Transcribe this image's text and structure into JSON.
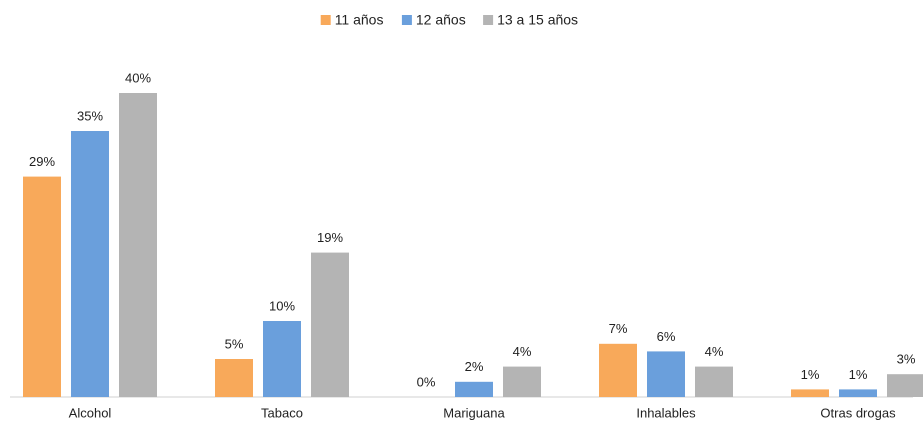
{
  "chart_data": {
    "type": "bar",
    "categories": [
      "Alcohol",
      "Tabaco",
      "Mariguana",
      "Inhalables",
      "Otras drogas"
    ],
    "series": [
      {
        "name": "11 años",
        "color": "#f8a95a",
        "values": [
          29,
          5,
          0,
          7,
          1
        ],
        "value_labels": [
          "29%",
          "5%",
          "0%",
          "7%",
          "1%"
        ]
      },
      {
        "name": "12 años",
        "color": "#6a9fdc",
        "values": [
          35,
          10,
          2,
          6,
          1
        ],
        "value_labels": [
          "35%",
          "10%",
          "2%",
          "6%",
          "1%"
        ]
      },
      {
        "name": "13 a 15 años",
        "color": "#b4b4b4",
        "values": [
          40,
          19,
          4,
          4,
          3
        ],
        "value_labels": [
          "40%",
          "19%",
          "4%",
          "4%",
          "3%"
        ]
      }
    ],
    "legend": "top"
  }
}
